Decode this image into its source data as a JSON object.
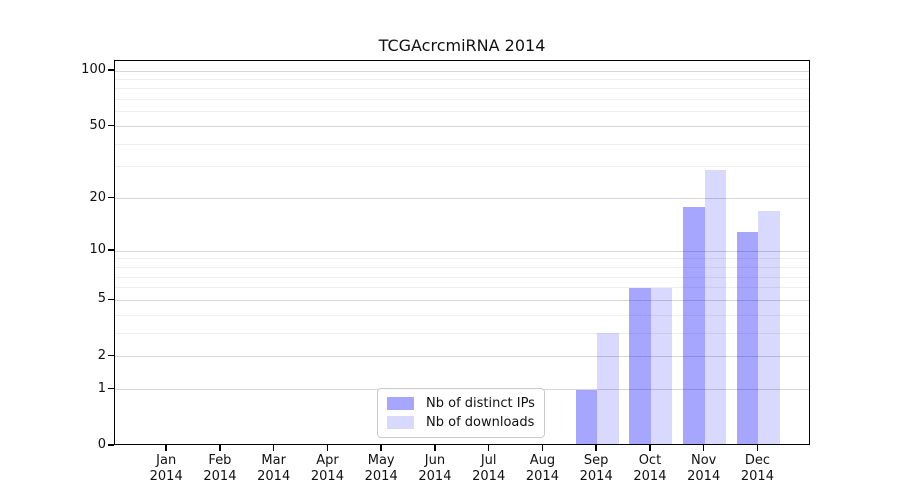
{
  "chart_data": {
    "type": "bar",
    "title": "TCGAcrcmiRNA 2014",
    "categories": [
      "Jan 2014",
      "Feb 2014",
      "Mar 2014",
      "Apr 2014",
      "May 2014",
      "Jun 2014",
      "Jul 2014",
      "Aug 2014",
      "Sep 2014",
      "Oct 2014",
      "Nov 2014",
      "Dec 2014"
    ],
    "xticklabels": [
      {
        "month": "Jan",
        "year": "2014"
      },
      {
        "month": "Feb",
        "year": "2014"
      },
      {
        "month": "Mar",
        "year": "2014"
      },
      {
        "month": "Apr",
        "year": "2014"
      },
      {
        "month": "May",
        "year": "2014"
      },
      {
        "month": "Jun",
        "year": "2014"
      },
      {
        "month": "Jul",
        "year": "2014"
      },
      {
        "month": "Aug",
        "year": "2014"
      },
      {
        "month": "Sep",
        "year": "2014"
      },
      {
        "month": "Oct",
        "year": "2014"
      },
      {
        "month": "Nov",
        "year": "2014"
      },
      {
        "month": "Dec",
        "year": "2014"
      }
    ],
    "series": [
      {
        "name": "Nb of distinct IPs",
        "color": "rgba(0,0,255,0.35)",
        "color_on_white": "#a6a6ff",
        "values": [
          0,
          0,
          0,
          0,
          0,
          0,
          0,
          0,
          1,
          6,
          18,
          13
        ]
      },
      {
        "name": "Nb of downloads",
        "color": "rgba(0,0,255,0.15)",
        "color_on_white": "#d9d9ff",
        "values": [
          0,
          0,
          0,
          0,
          0,
          0,
          0,
          0,
          3,
          6,
          29,
          17
        ]
      }
    ],
    "xlabel": "",
    "ylabel": "",
    "yscale": "log1p (linear 0-1, logarithmic above)",
    "ylim": [
      0,
      113
    ],
    "yticks": [
      0,
      1,
      2,
      5,
      10,
      20,
      50,
      100
    ],
    "grid_minor_values": [
      3,
      4,
      6,
      7,
      8,
      9,
      30,
      40,
      60,
      70,
      80,
      90
    ],
    "grid": true,
    "legend_position": "lower center inside axes",
    "colors": {
      "background": "#ffffff",
      "spine": "#000000",
      "grid_major": "#d6d6d6",
      "grid_minor": "#eeeeee",
      "legend_border": "#cccccc",
      "text": "#111111"
    }
  }
}
